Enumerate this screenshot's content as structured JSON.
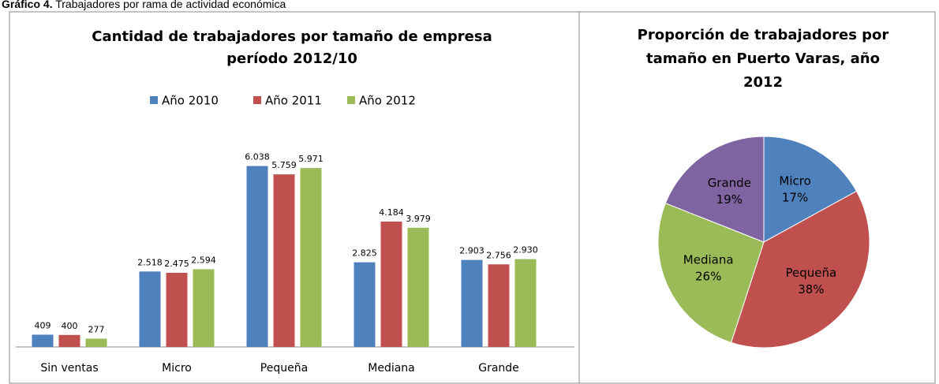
{
  "caption": {
    "label": "Gráfico 4.",
    "text": "Trabajadores por rama de actividad económica"
  },
  "chart_data": [
    {
      "type": "bar",
      "title": [
        "Cantidad de trabajadores por tamaño de empresa",
        "período 2012/10"
      ],
      "categories": [
        "Sin ventas",
        "Micro",
        "Pequeña",
        "Mediana",
        "Grande"
      ],
      "series": [
        {
          "name": "Año 2010",
          "color": "#4f81bd",
          "values": [
            409,
            2518,
            6038,
            2825,
            2903
          ],
          "value_labels": [
            "409",
            "2.518",
            "6.038",
            "2.825",
            "2.903"
          ]
        },
        {
          "name": "Año 2011",
          "color": "#c0504d",
          "values": [
            400,
            2475,
            5759,
            4184,
            2756
          ],
          "value_labels": [
            "400",
            "2.475",
            "5.759",
            "4.184",
            "2.756"
          ]
        },
        {
          "name": "Año 2012",
          "color": "#9bbb59",
          "values": [
            277,
            2594,
            5971,
            3979,
            2930
          ],
          "value_labels": [
            "277",
            "2.594",
            "5.971",
            "3.979",
            "2.930"
          ]
        }
      ],
      "legend": "top"
    },
    {
      "type": "pie",
      "title": [
        "Proporción de trabajadores por",
        "tamaño en Puerto Varas, año",
        "2012"
      ],
      "categories": [
        "Micro",
        "Pequeña",
        "Mediana",
        "Grande"
      ],
      "values": [
        17,
        38,
        26,
        19
      ],
      "value_labels": [
        "17%",
        "38%",
        "26%",
        "19%"
      ],
      "colors": [
        "#4f81bd",
        "#c0504d",
        "#9bbb59",
        "#8064a2"
      ]
    }
  ]
}
